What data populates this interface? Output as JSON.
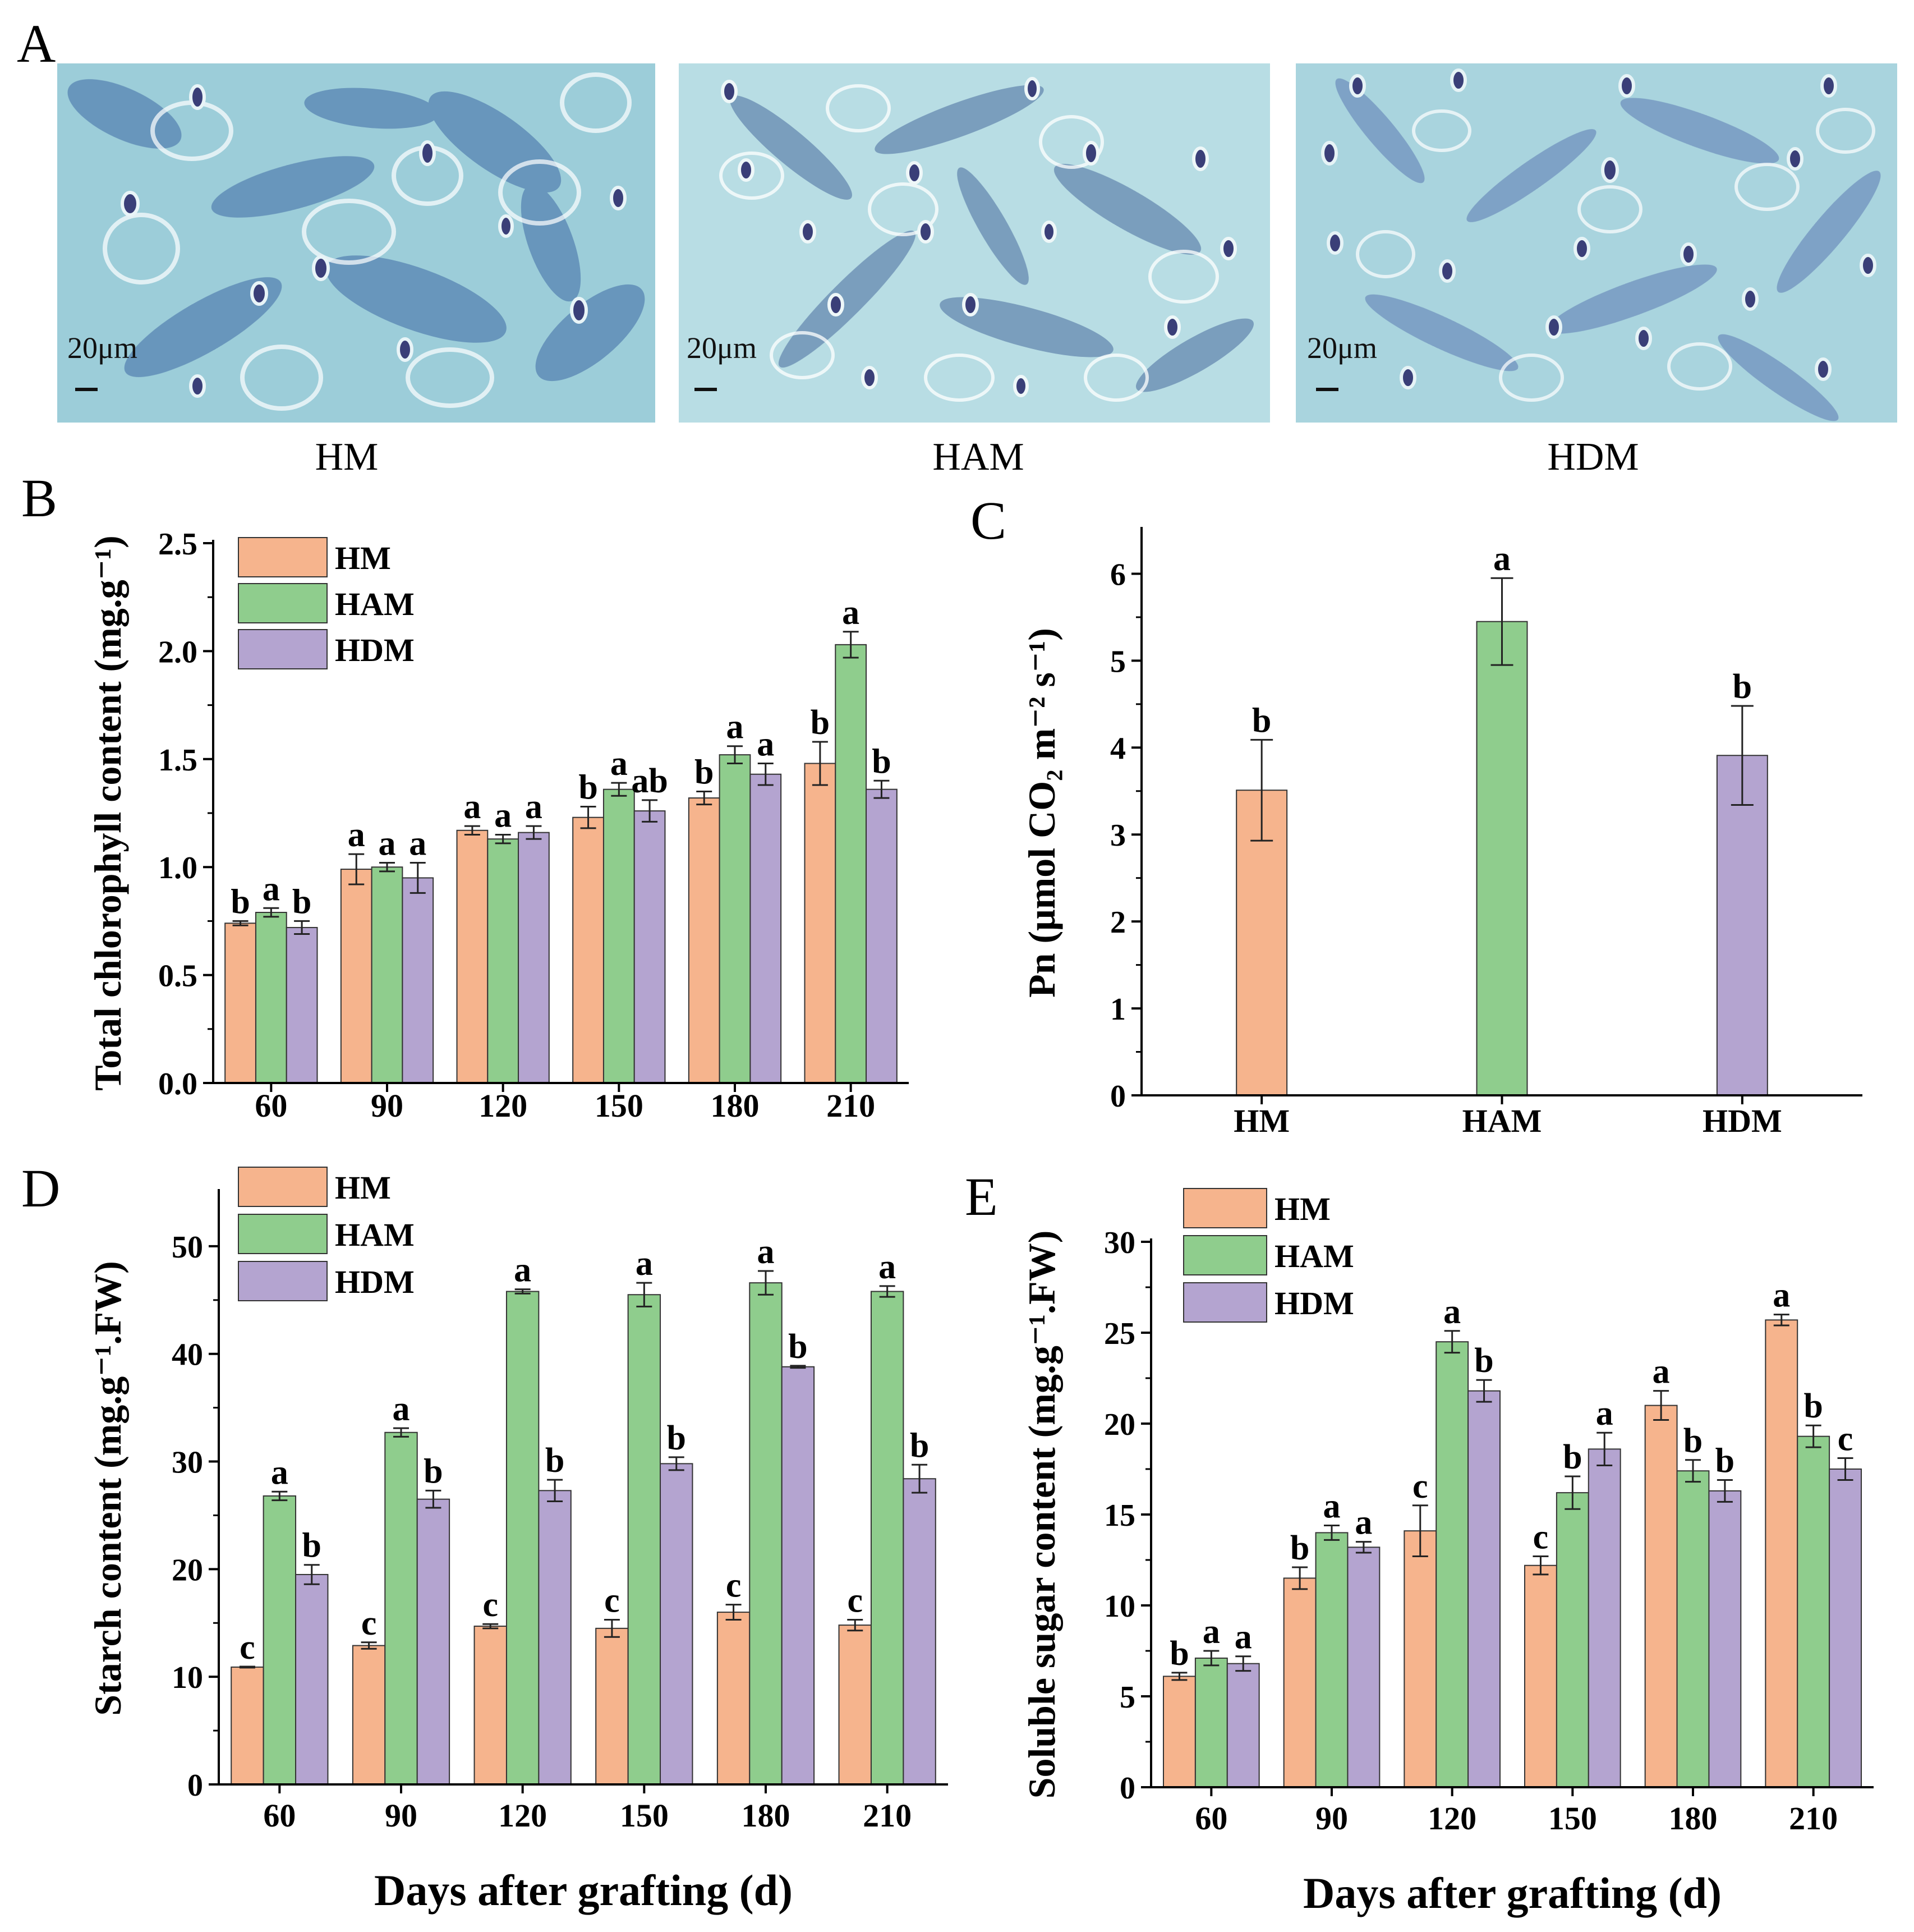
{
  "colors": {
    "HM": "#f6b48d",
    "HAM": "#8fcd8d",
    "HDM": "#b4a4d0",
    "stroke": "#333333"
  },
  "panel_a": {
    "letter": "A",
    "images": [
      {
        "caption": "HM",
        "scale": "20μm"
      },
      {
        "caption": "HAM",
        "scale": "20μm"
      },
      {
        "caption": "HDM",
        "scale": "20μm"
      }
    ]
  },
  "chart_data": [
    {
      "panel": "B",
      "type": "bar",
      "ylabel": "Total chlorophyll content (mg.g⁻¹)",
      "xlabel": "",
      "categories": [
        "60",
        "90",
        "120",
        "150",
        "180",
        "210"
      ],
      "ylim": [
        0,
        2.5
      ],
      "yticks": [
        "0.0",
        "0.5",
        "1.0",
        "1.5",
        "2.0",
        "2.5"
      ],
      "legend": "top-left",
      "series": [
        {
          "name": "HM",
          "values": [
            0.74,
            0.99,
            1.17,
            1.23,
            1.32,
            1.48
          ],
          "errors": [
            0.01,
            0.07,
            0.02,
            0.05,
            0.03,
            0.1
          ],
          "letters": [
            "b",
            "a",
            "a",
            "b",
            "b",
            "b"
          ]
        },
        {
          "name": "HAM",
          "values": [
            0.79,
            1.0,
            1.13,
            1.36,
            1.52,
            2.03
          ],
          "errors": [
            0.02,
            0.02,
            0.02,
            0.03,
            0.04,
            0.06
          ],
          "letters": [
            "a",
            "a",
            "a",
            "a",
            "a",
            "a"
          ]
        },
        {
          "name": "HDM",
          "values": [
            0.72,
            0.95,
            1.16,
            1.26,
            1.43,
            1.36
          ],
          "errors": [
            0.03,
            0.07,
            0.03,
            0.05,
            0.05,
            0.04
          ],
          "letters": [
            "b",
            "a",
            "a",
            "ab",
            "a",
            "b"
          ]
        }
      ]
    },
    {
      "panel": "C",
      "type": "bar",
      "ylabel": "Pn (μmol CO₂ m⁻² s⁻¹)",
      "xlabel": "",
      "categories": [
        "HM",
        "HAM",
        "HDM"
      ],
      "ylim": [
        0,
        6.5
      ],
      "yticks": [
        "0",
        "1",
        "2",
        "3",
        "4",
        "5",
        "6"
      ],
      "legend": "none",
      "series": [
        {
          "name": "Pn",
          "values": [
            3.51,
            5.45,
            3.91
          ],
          "errors": [
            0.58,
            0.5,
            0.57
          ],
          "letters": [
            "b",
            "a",
            "b"
          ],
          "colors": [
            "#f6b48d",
            "#8fcd8d",
            "#b4a4d0"
          ]
        }
      ]
    },
    {
      "panel": "D",
      "type": "bar",
      "ylabel": "Starch content (mg.g⁻¹.FW)",
      "xlabel": "Days after grafting (d)",
      "categories": [
        "60",
        "90",
        "120",
        "150",
        "180",
        "210"
      ],
      "ylim": [
        0,
        55
      ],
      "yticks": [
        "0",
        "10",
        "20",
        "30",
        "40",
        "50"
      ],
      "legend": "top-left",
      "series": [
        {
          "name": "HM",
          "values": [
            10.9,
            12.9,
            14.7,
            14.5,
            16.0,
            14.8
          ],
          "errors": [
            0.05,
            0.3,
            0.2,
            0.8,
            0.7,
            0.5
          ],
          "letters": [
            "c",
            "c",
            "c",
            "c",
            "c",
            "c"
          ]
        },
        {
          "name": "HAM",
          "values": [
            26.8,
            32.7,
            45.8,
            45.5,
            46.6,
            45.8
          ],
          "errors": [
            0.4,
            0.4,
            0.2,
            1.1,
            1.1,
            0.5
          ],
          "letters": [
            "a",
            "a",
            "a",
            "a",
            "a",
            "a"
          ]
        },
        {
          "name": "HDM",
          "values": [
            19.5,
            26.5,
            27.3,
            29.8,
            38.8,
            28.4
          ],
          "errors": [
            0.9,
            0.8,
            1.0,
            0.6,
            0.1,
            1.3
          ],
          "letters": [
            "b",
            "b",
            "b",
            "b",
            "b",
            "b"
          ]
        }
      ]
    },
    {
      "panel": "E",
      "type": "bar",
      "ylabel": "Soluble sugar content (mg.g⁻¹.FW)",
      "xlabel": "Days after grafting (d)",
      "categories": [
        "60",
        "90",
        "120",
        "150",
        "180",
        "210"
      ],
      "ylim": [
        0,
        30
      ],
      "yticks": [
        "0",
        "5",
        "10",
        "15",
        "20",
        "25",
        "30"
      ],
      "legend": "top-left",
      "series": [
        {
          "name": "HM",
          "values": [
            6.1,
            11.5,
            14.1,
            12.2,
            21.0,
            25.7
          ],
          "errors": [
            0.2,
            0.6,
            1.4,
            0.5,
            0.8,
            0.3
          ],
          "letters": [
            "b",
            "b",
            "c",
            "c",
            "a",
            "a"
          ]
        },
        {
          "name": "HAM",
          "values": [
            7.1,
            14.0,
            24.5,
            16.2,
            17.4,
            19.3
          ],
          "errors": [
            0.4,
            0.4,
            0.6,
            0.9,
            0.6,
            0.6
          ],
          "letters": [
            "a",
            "a",
            "a",
            "b",
            "b",
            "b"
          ]
        },
        {
          "name": "HDM",
          "values": [
            6.8,
            13.2,
            21.8,
            18.6,
            16.3,
            17.5
          ],
          "errors": [
            0.4,
            0.3,
            0.6,
            0.9,
            0.6,
            0.6
          ],
          "letters": [
            "a",
            "a",
            "b",
            "a",
            "b",
            "c"
          ]
        }
      ]
    }
  ]
}
